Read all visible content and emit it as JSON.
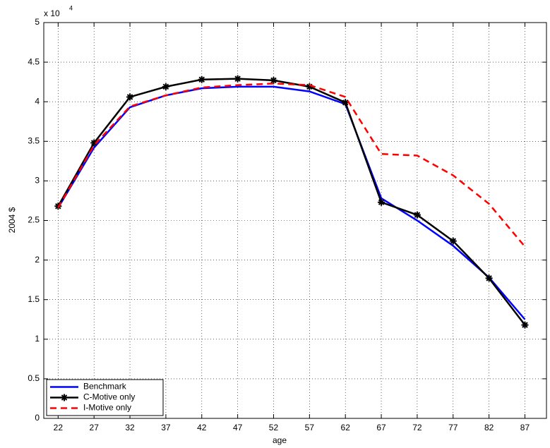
{
  "chart_data": {
    "type": "line",
    "x_label": "age",
    "y_label": "2004 $",
    "y_multiplier": {
      "base": "x 10",
      "exponent": "4"
    },
    "x": [
      22,
      27,
      32,
      37,
      42,
      47,
      52,
      57,
      62,
      67,
      72,
      77,
      82,
      87
    ],
    "xlim": [
      20,
      90
    ],
    "xticks": [
      22,
      27,
      32,
      37,
      42,
      47,
      52,
      57,
      62,
      67,
      72,
      77,
      82,
      87
    ],
    "ylim": [
      0,
      5
    ],
    "yticks": [
      0,
      0.5,
      1,
      1.5,
      2,
      2.5,
      3,
      3.5,
      4,
      4.5,
      5
    ],
    "grid": true,
    "legend": "lower left",
    "series": [
      {
        "name": "Benchmark",
        "color": "#0000ff",
        "linestyle": "solid",
        "marker": "none",
        "values": [
          2.66,
          3.42,
          3.93,
          4.08,
          4.17,
          4.19,
          4.19,
          4.13,
          3.97,
          2.78,
          2.5,
          2.18,
          1.78,
          1.25
        ]
      },
      {
        "name": "C-Motive only",
        "color": "#000000",
        "linestyle": "solid",
        "marker": "star",
        "values": [
          2.68,
          3.48,
          4.06,
          4.19,
          4.28,
          4.29,
          4.27,
          4.19,
          3.99,
          2.73,
          2.57,
          2.24,
          1.77,
          1.18
        ]
      },
      {
        "name": "I-Motive only",
        "color": "#ff0000",
        "linestyle": "dashed",
        "marker": "none",
        "values": [
          2.66,
          3.45,
          3.94,
          4.08,
          4.18,
          4.21,
          4.23,
          4.21,
          4.06,
          3.34,
          3.32,
          3.07,
          2.71,
          2.17
        ]
      }
    ]
  }
}
